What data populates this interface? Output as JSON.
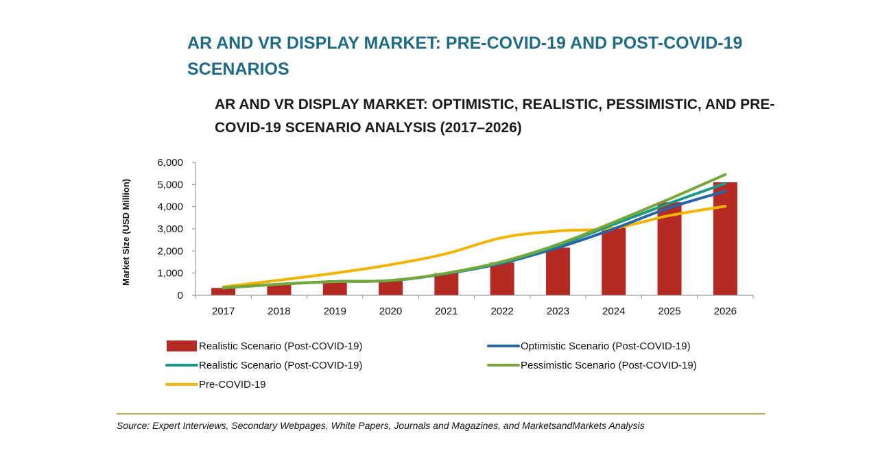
{
  "title": "AR AND VR DISPLAY MARKET: PRE-COVID-19 AND POST-COVID-19 SCENARIOS",
  "source": "Source: Expert Interviews, Secondary Webpages, White Papers, Journals and Magazines, and MarketsandMarkets Analysis",
  "colors": {
    "title": "#1f6a86",
    "bar": "#b52a22",
    "optimistic": "#2a64a8",
    "realistic_line": "#1b9a85",
    "pessimistic": "#74a83a",
    "pre_covid": "#f2b400",
    "rule": "#c2a74e"
  },
  "chart_data": {
    "type": "bar",
    "title": "AR AND VR DISPLAY MARKET: OPTIMISTIC, REALISTIC, PESSIMISTIC, AND PRE-COVID-19 SCENARIO ANALYSIS (2017–2026)",
    "xlabel": "",
    "ylabel": "Market Size (USD Million)",
    "ylim": [
      0,
      6000
    ],
    "yticks": [
      0,
      1000,
      2000,
      3000,
      4000,
      5000,
      6000
    ],
    "ytick_labels": [
      "0",
      "1,000",
      "2,000",
      "3,000",
      "4,000",
      "5,000",
      "6,000"
    ],
    "categories": [
      "2017",
      "2018",
      "2019",
      "2020",
      "2021",
      "2022",
      "2023",
      "2024",
      "2025",
      "2026"
    ],
    "grid": false,
    "legend_position": "bottom",
    "series": [
      {
        "name": "Realistic Scenario (Post-COVID-19)",
        "kind": "bar",
        "color": "#b52a22",
        "values": [
          330,
          480,
          600,
          650,
          1000,
          1480,
          2150,
          3050,
          4200,
          5100
        ]
      },
      {
        "name": "Optimistic Scenario (Post-COVID-19)",
        "kind": "line",
        "color": "#2a64a8",
        "values": [
          330,
          500,
          620,
          660,
          980,
          1450,
          2150,
          3000,
          3950,
          4700
        ]
      },
      {
        "name": "Realistic Scenario (Post-COVID-19)",
        "kind": "line",
        "color": "#1b9a85",
        "values": [
          330,
          500,
          620,
          665,
          990,
          1480,
          2250,
          3200,
          4150,
          5050
        ]
      },
      {
        "name": "Pessimistic Scenario (Post-COVID-19)",
        "kind": "line",
        "color": "#74a83a",
        "values": [
          330,
          500,
          620,
          670,
          1000,
          1520,
          2300,
          3300,
          4350,
          5450
        ]
      },
      {
        "name": "Pre-COVID-19",
        "kind": "line",
        "color": "#f2b400",
        "values": [
          380,
          680,
          1000,
          1380,
          1880,
          2600,
          2900,
          3030,
          3600,
          4020
        ]
      }
    ]
  }
}
